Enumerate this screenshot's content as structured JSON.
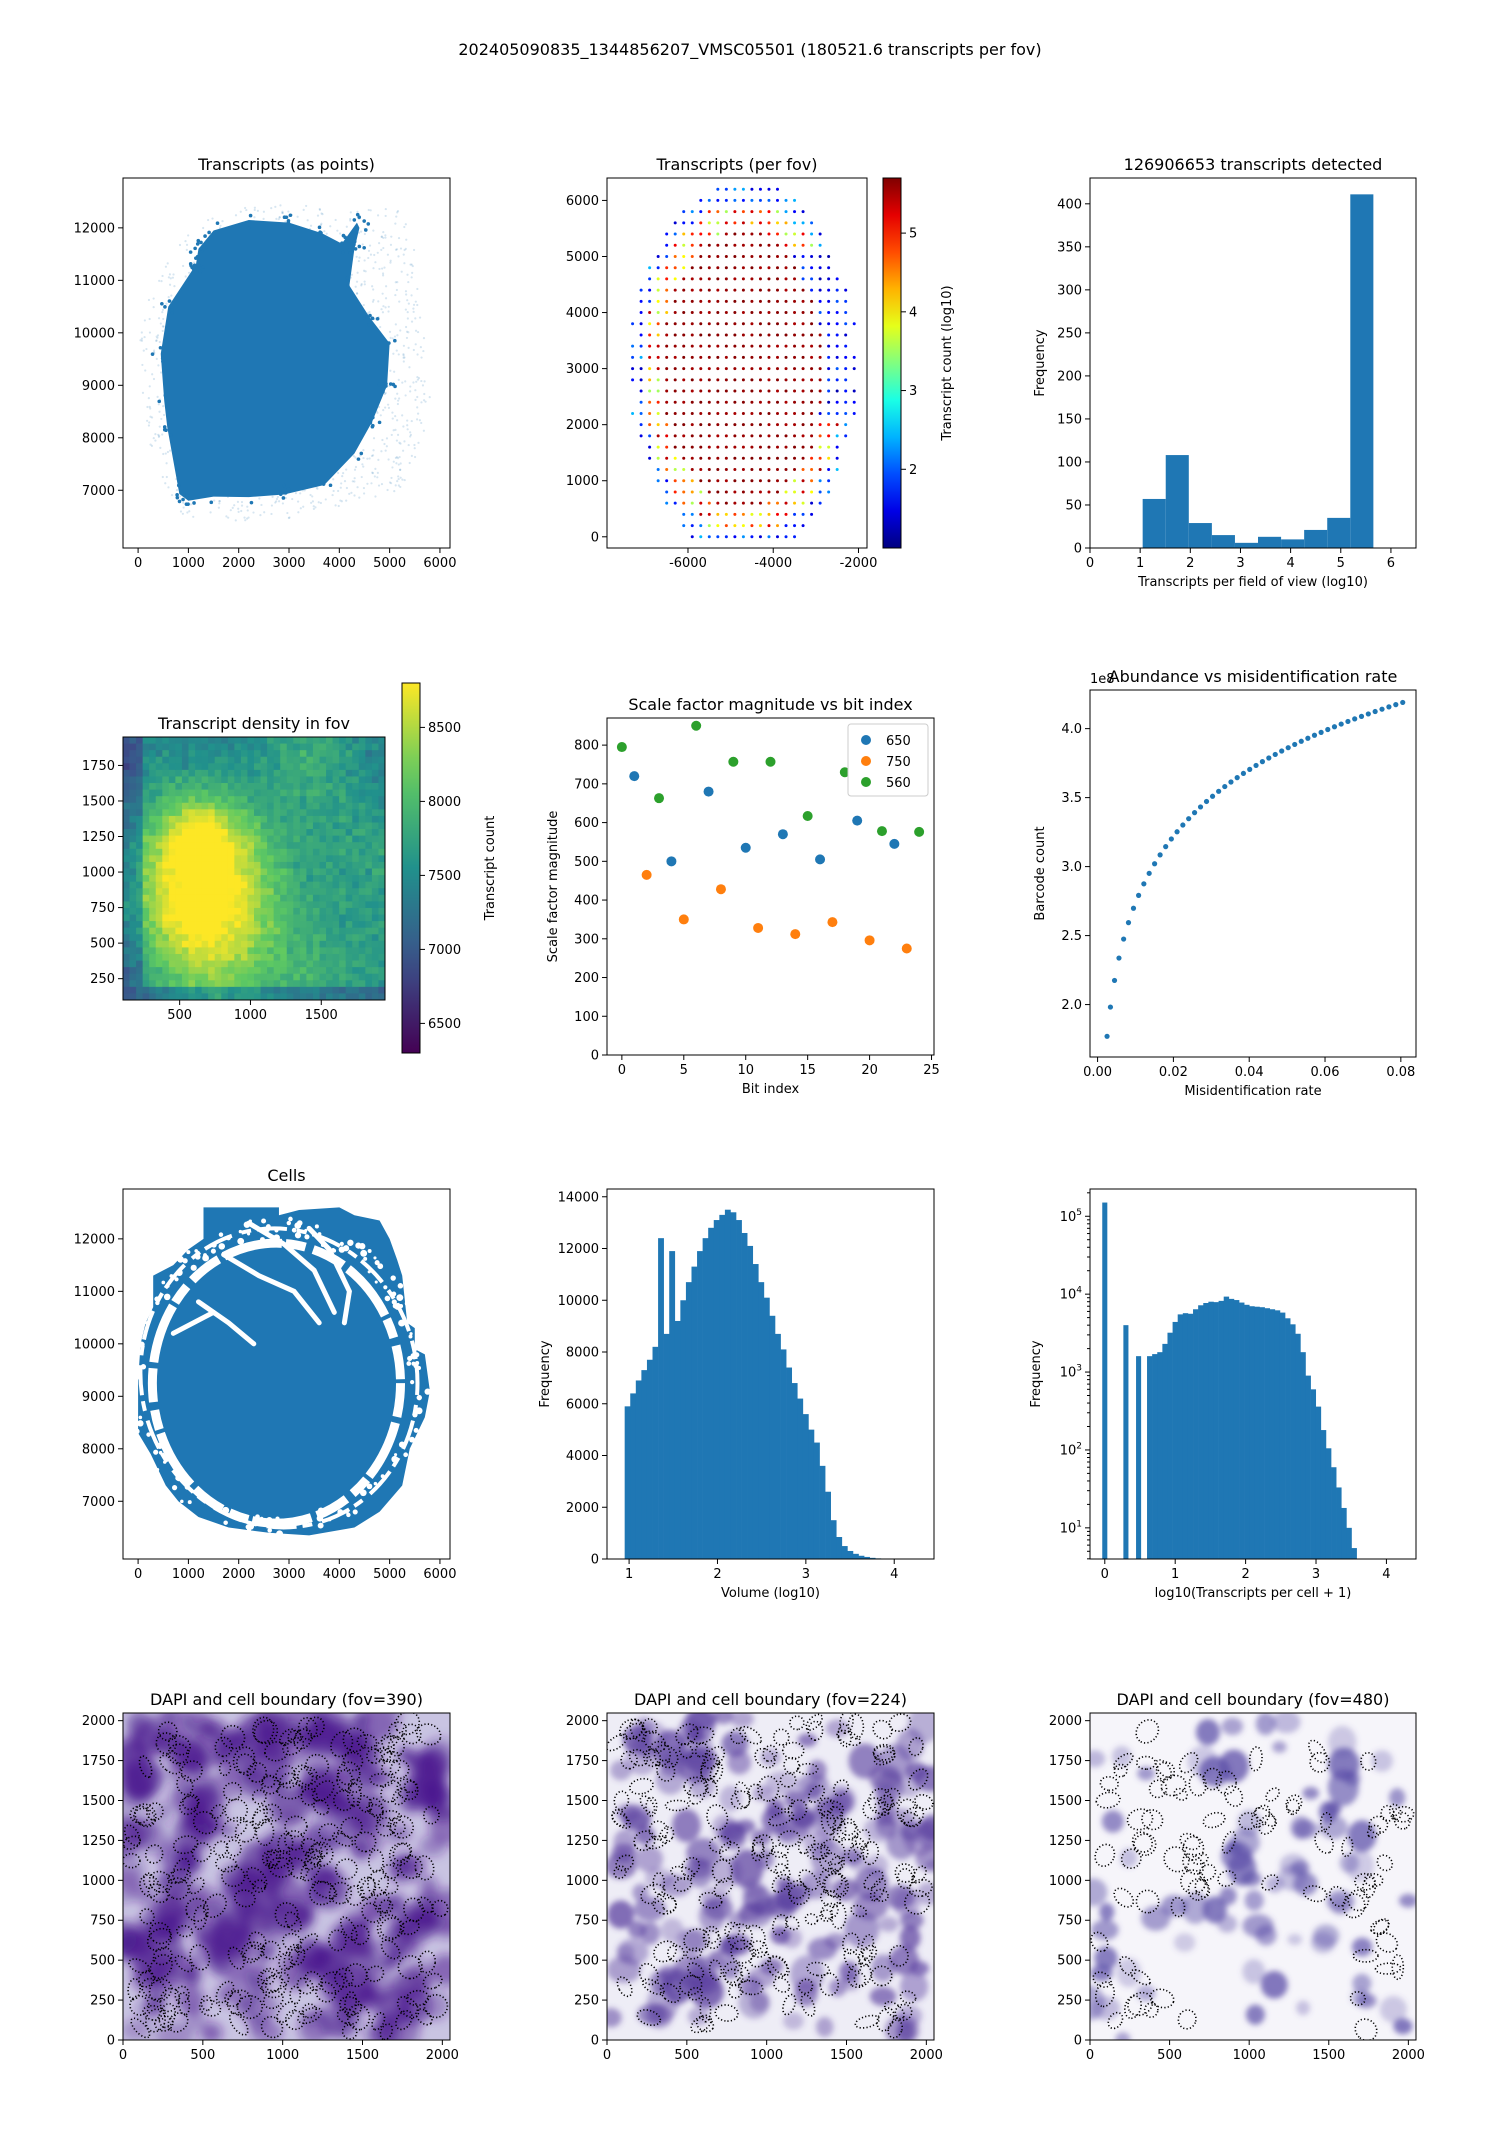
{
  "suptitle": "202405090835_1344856207_VMSC05501 (180521.6 transcripts per fov)",
  "colors": {
    "blue": "#1f77b4",
    "orange": "#ff7f0e",
    "green": "#2ca02c"
  },
  "chart_data": [
    {
      "id": "transcripts_points",
      "type": "scatter",
      "title": "Transcripts (as points)",
      "xlabel": "",
      "ylabel": "",
      "xlim": [
        -300,
        6200
      ],
      "ylim": [
        5900,
        12950
      ],
      "xticks": [
        0,
        1000,
        2000,
        3000,
        4000,
        5000,
        6000
      ],
      "yticks": [
        7000,
        8000,
        9000,
        10000,
        11000,
        12000
      ],
      "note": "dense transcript point cloud (tissue shape)"
    },
    {
      "id": "transcripts_per_fov",
      "type": "scatter",
      "title": "Transcripts (per fov)",
      "xlabel": "",
      "ylabel": "",
      "xlim": [
        -7900,
        -1800
      ],
      "ylim": [
        -200,
        6400
      ],
      "xticks": [
        -6000,
        -4000,
        -2000
      ],
      "yticks": [
        0,
        1000,
        2000,
        3000,
        4000,
        5000,
        6000
      ],
      "colorbar": {
        "label": "Transcript count (log10)",
        "range": [
          1.0,
          5.7
        ],
        "ticks": [
          2,
          3,
          4,
          5
        ],
        "cmap": "jet"
      }
    },
    {
      "id": "fov_histogram",
      "type": "bar",
      "title": "126906653 transcripts detected",
      "xlabel": "Transcripts per field of view (log10)",
      "ylabel": "Frequency",
      "xlim": [
        0,
        6.5
      ],
      "ylim": [
        0,
        430
      ],
      "xticks": [
        0,
        1,
        2,
        3,
        4,
        5,
        6
      ],
      "yticks": [
        0,
        50,
        100,
        150,
        200,
        250,
        300,
        350,
        400
      ],
      "bin_edges": [
        1.05,
        1.51,
        1.97,
        2.43,
        2.89,
        3.35,
        3.81,
        4.27,
        4.73,
        5.19,
        5.65
      ],
      "values": [
        57,
        108,
        29,
        15,
        6,
        13,
        10,
        21,
        35,
        411
      ]
    },
    {
      "id": "density_fov",
      "type": "heatmap",
      "title": "Transcript density in fov",
      "xlabel": "",
      "ylabel": "",
      "xlim": [
        100,
        1950
      ],
      "ylim": [
        100,
        1950
      ],
      "xticks": [
        500,
        1000,
        1500
      ],
      "yticks": [
        250,
        500,
        750,
        1000,
        1250,
        1500,
        1750
      ],
      "colorbar": {
        "label": "Transcript count",
        "range": [
          6300,
          8800
        ],
        "ticks": [
          6500,
          7000,
          7500,
          8000,
          8500
        ],
        "cmap": "viridis"
      }
    },
    {
      "id": "scale_factor",
      "type": "scatter",
      "title": "Scale factor magnitude vs bit index",
      "xlabel": "Bit index",
      "ylabel": "Scale factor magnitude",
      "xlim": [
        -1.2,
        25.2
      ],
      "ylim": [
        0,
        870
      ],
      "xticks": [
        0,
        5,
        10,
        15,
        20,
        25
      ],
      "yticks": [
        0,
        100,
        200,
        300,
        400,
        500,
        600,
        700,
        800
      ],
      "legend": "top-right",
      "series": [
        {
          "name": "650",
          "color": "#1f77b4",
          "x": [
            1,
            4,
            7,
            10,
            13,
            16,
            19,
            22
          ],
          "y": [
            720,
            500,
            680,
            535,
            570,
            505,
            605,
            545
          ]
        },
        {
          "name": "750",
          "color": "#ff7f0e",
          "x": [
            2,
            5,
            8,
            11,
            14,
            17,
            20,
            23
          ],
          "y": [
            465,
            350,
            428,
            328,
            312,
            343,
            296,
            275
          ]
        },
        {
          "name": "560",
          "color": "#2ca02c",
          "x": [
            0,
            3,
            6,
            9,
            12,
            15,
            18,
            21,
            24
          ],
          "y": [
            795,
            663,
            850,
            757,
            757,
            617,
            730,
            578,
            576
          ]
        }
      ]
    },
    {
      "id": "abundance",
      "type": "scatter",
      "title": "Abundance vs misidentification rate",
      "xlabel": "Misidentification rate",
      "ylabel": "Barcode count",
      "offset_label": "1e8",
      "xlim": [
        -0.002,
        0.084
      ],
      "ylim": [
        1.62,
        4.28
      ],
      "xticks": [
        0.0,
        0.02,
        0.04,
        0.06,
        0.08
      ],
      "xtick_labels": [
        "0.00",
        "0.02",
        "0.04",
        "0.06",
        "0.08"
      ],
      "yticks": [
        2.0,
        2.5,
        3.0,
        3.5,
        4.0
      ],
      "ytick_labels": [
        "2.0",
        "2.5",
        "3.0",
        "3.5",
        "4.0"
      ],
      "curve": {
        "x_start": 0.0025,
        "x_end": 0.0805,
        "n_points": 50,
        "y_start": 1.77,
        "y_end": 4.19
      }
    },
    {
      "id": "cells",
      "type": "scatter",
      "title": "Cells",
      "xlabel": "",
      "ylabel": "",
      "xlim": [
        -300,
        6200
      ],
      "ylim": [
        5900,
        12950
      ],
      "xticks": [
        0,
        1000,
        2000,
        3000,
        4000,
        5000,
        6000
      ],
      "yticks": [
        7000,
        8000,
        9000,
        10000,
        11000,
        12000
      ]
    },
    {
      "id": "volume_hist",
      "type": "bar",
      "title": "",
      "xlabel": "Volume (log10)",
      "ylabel": "Frequency",
      "xlim": [
        0.75,
        4.45
      ],
      "ylim": [
        0,
        14300
      ],
      "xticks": [
        1,
        2,
        3,
        4
      ],
      "yticks": [
        0,
        2000,
        4000,
        6000,
        8000,
        10000,
        12000,
        14000
      ],
      "bin_start": 0.95,
      "bin_width": 0.063,
      "values": [
        5900,
        6400,
        6900,
        7300,
        7700,
        8200,
        12400,
        8700,
        11900,
        9200,
        10000,
        10700,
        11300,
        11900,
        12400,
        12800,
        13100,
        13300,
        13500,
        13400,
        13100,
        12600,
        12100,
        11400,
        10700,
        10100,
        9400,
        8700,
        8100,
        7400,
        6800,
        6200,
        5600,
        5000,
        4500,
        3600,
        2600,
        1500,
        850,
        500,
        310,
        200,
        125,
        80,
        45,
        25,
        15,
        8
      ]
    },
    {
      "id": "transcripts_per_cell",
      "type": "bar",
      "title": "",
      "xlabel": "log10(Transcripts per cell + 1)",
      "ylabel": "Frequency",
      "yscale": "log",
      "xlim": [
        -0.21,
        4.42
      ],
      "ylim_log10": [
        0.6,
        5.35
      ],
      "xticks": [
        0,
        1,
        2,
        3,
        4
      ],
      "yticks_log10": [
        1,
        2,
        3,
        4,
        5
      ],
      "isolated_bars": [
        {
          "x": 0.0,
          "value": 150000
        },
        {
          "x": 0.3,
          "value": 4000
        },
        {
          "x": 0.48,
          "value": 1600
        }
      ],
      "bin_start": 0.6,
      "bin_width": 0.0726,
      "values": [
        1600,
        1700,
        1800,
        2300,
        3200,
        4400,
        5500,
        5700,
        5600,
        6400,
        7200,
        7700,
        8000,
        7900,
        8200,
        9300,
        8700,
        8400,
        7800,
        7300,
        7000,
        6900,
        6800,
        6600,
        6400,
        6200,
        5800,
        4900,
        4100,
        3100,
        1800,
        900,
        600,
        360,
        180,
        105,
        60,
        33,
        18,
        10,
        5.5
      ]
    },
    {
      "id": "dapi_390",
      "type": "heatmap",
      "title": "DAPI and cell boundary (fov=390)",
      "xlabel": "",
      "ylabel": "",
      "xlim": [
        0,
        2048
      ],
      "ylim": [
        0,
        2048
      ],
      "xticks": [
        0,
        500,
        1000,
        1500,
        2000
      ],
      "yticks": [
        0,
        250,
        500,
        750,
        1000,
        1250,
        1500,
        1750,
        2000
      ]
    },
    {
      "id": "dapi_224",
      "type": "heatmap",
      "title": "DAPI and cell boundary (fov=224)",
      "xlabel": "",
      "ylabel": "",
      "xlim": [
        0,
        2048
      ],
      "ylim": [
        0,
        2048
      ],
      "xticks": [
        0,
        500,
        1000,
        1500,
        2000
      ],
      "yticks": [
        0,
        250,
        500,
        750,
        1000,
        1250,
        1500,
        1750,
        2000
      ]
    },
    {
      "id": "dapi_480",
      "type": "heatmap",
      "title": "DAPI and cell boundary (fov=480)",
      "xlabel": "",
      "ylabel": "",
      "xlim": [
        0,
        2048
      ],
      "ylim": [
        0,
        2048
      ],
      "xticks": [
        0,
        500,
        1000,
        1500,
        2000
      ],
      "yticks": [
        0,
        250,
        500,
        750,
        1000,
        1250,
        1500,
        1750,
        2000
      ]
    }
  ]
}
